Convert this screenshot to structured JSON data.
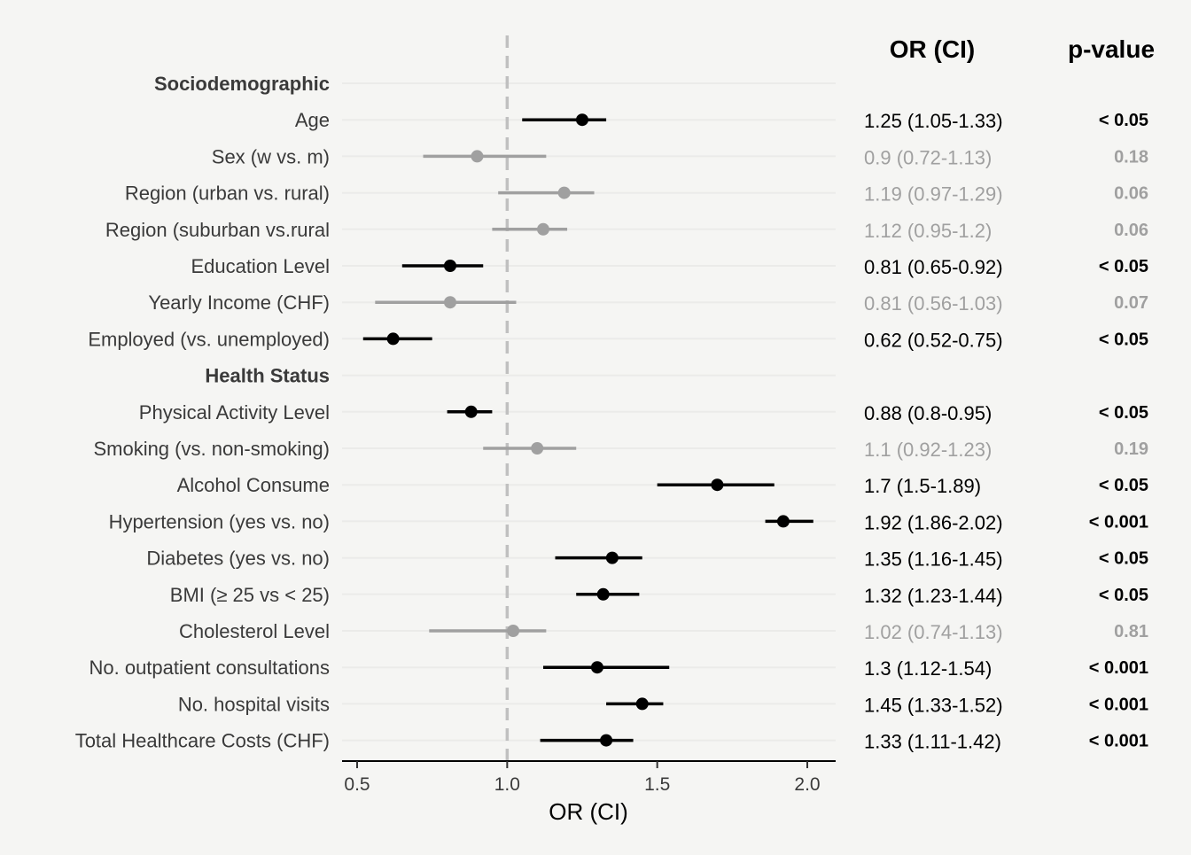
{
  "chart_data": {
    "type": "forest",
    "xlabel": "OR (CI)",
    "xlim": [
      0.45,
      2.09
    ],
    "xticks": [
      0.5,
      1.0,
      1.5,
      2.0
    ],
    "xtick_labels": [
      "0.5",
      "1.0",
      "1.5",
      "2.0"
    ],
    "reference_line": 1.0,
    "grid": true,
    "table_headers": {
      "or_ci": "OR (CI)",
      "pvalue": "p-value"
    },
    "colors": {
      "significant": "#000000",
      "nonsignificant": "#a0a0a0",
      "reference": "#c0c0c0",
      "grid": "#ebebe9"
    },
    "rows": [
      {
        "kind": "header",
        "label": "Sociodemographic"
      },
      {
        "kind": "item",
        "label": "Age",
        "or": 1.25,
        "lo": 1.05,
        "hi": 1.33,
        "ci_text": "1.25 (1.05-1.33)",
        "p_text": "< 0.05",
        "significant": true
      },
      {
        "kind": "item",
        "label": "Sex (w vs. m)",
        "or": 0.9,
        "lo": 0.72,
        "hi": 1.13,
        "ci_text": "0.9 (0.72-1.13)",
        "p_text": "0.18",
        "significant": false
      },
      {
        "kind": "item",
        "label": "Region (urban vs. rural)",
        "or": 1.19,
        "lo": 0.97,
        "hi": 1.29,
        "ci_text": "1.19 (0.97-1.29)",
        "p_text": "0.06",
        "significant": false
      },
      {
        "kind": "item",
        "label": "Region (suburban vs.rural",
        "or": 1.12,
        "lo": 0.95,
        "hi": 1.2,
        "ci_text": "1.12 (0.95-1.2)",
        "p_text": "0.06",
        "significant": false
      },
      {
        "kind": "item",
        "label": "Education Level",
        "or": 0.81,
        "lo": 0.65,
        "hi": 0.92,
        "ci_text": "0.81 (0.65-0.92)",
        "p_text": "< 0.05",
        "significant": true
      },
      {
        "kind": "item",
        "label": "Yearly Income (CHF)",
        "or": 0.81,
        "lo": 0.56,
        "hi": 1.03,
        "ci_text": "0.81 (0.56-1.03)",
        "p_text": "0.07",
        "significant": false
      },
      {
        "kind": "item",
        "label": "Employed (vs. unemployed)",
        "or": 0.62,
        "lo": 0.52,
        "hi": 0.75,
        "ci_text": "0.62 (0.52-0.75)",
        "p_text": "< 0.05",
        "significant": true
      },
      {
        "kind": "header",
        "label": "Health Status"
      },
      {
        "kind": "item",
        "label": "Physical Activity Level",
        "or": 0.88,
        "lo": 0.8,
        "hi": 0.95,
        "ci_text": "0.88 (0.8-0.95)",
        "p_text": "< 0.05",
        "significant": true
      },
      {
        "kind": "item",
        "label": "Smoking (vs. non-smoking)",
        "or": 1.1,
        "lo": 0.92,
        "hi": 1.23,
        "ci_text": "1.1 (0.92-1.23)",
        "p_text": "0.19",
        "significant": false
      },
      {
        "kind": "item",
        "label": "Alcohol Consume",
        "or": 1.7,
        "lo": 1.5,
        "hi": 1.89,
        "ci_text": "1.7 (1.5-1.89)",
        "p_text": "< 0.05",
        "significant": true
      },
      {
        "kind": "item",
        "label": "Hypertension (yes vs. no)",
        "or": 1.92,
        "lo": 1.86,
        "hi": 2.02,
        "ci_text": "1.92 (1.86-2.02)",
        "p_text": "< 0.001",
        "significant": true
      },
      {
        "kind": "item",
        "label": "Diabetes (yes vs. no)",
        "or": 1.35,
        "lo": 1.16,
        "hi": 1.45,
        "ci_text": "1.35 (1.16-1.45)",
        "p_text": "< 0.05",
        "significant": true
      },
      {
        "kind": "item",
        "label": "BMI (≥ 25 vs < 25)",
        "or": 1.32,
        "lo": 1.23,
        "hi": 1.44,
        "ci_text": "1.32 (1.23-1.44)",
        "p_text": "< 0.05",
        "significant": true
      },
      {
        "kind": "item",
        "label": "Cholesterol Level",
        "or": 1.02,
        "lo": 0.74,
        "hi": 1.13,
        "ci_text": "1.02 (0.74-1.13)",
        "p_text": "0.81",
        "significant": false
      },
      {
        "kind": "item",
        "label": "No. outpatient consultations",
        "or": 1.3,
        "lo": 1.12,
        "hi": 1.54,
        "ci_text": "1.3 (1.12-1.54)",
        "p_text": "< 0.001",
        "significant": true
      },
      {
        "kind": "item",
        "label": "No. hospital visits",
        "or": 1.45,
        "lo": 1.33,
        "hi": 1.52,
        "ci_text": "1.45 (1.33-1.52)",
        "p_text": "< 0.001",
        "significant": true
      },
      {
        "kind": "item",
        "label": "Total Healthcare Costs (CHF)",
        "or": 1.33,
        "lo": 1.11,
        "hi": 1.42,
        "ci_text": "1.33 (1.11-1.42)",
        "p_text": "< 0.001",
        "significant": true
      }
    ]
  }
}
